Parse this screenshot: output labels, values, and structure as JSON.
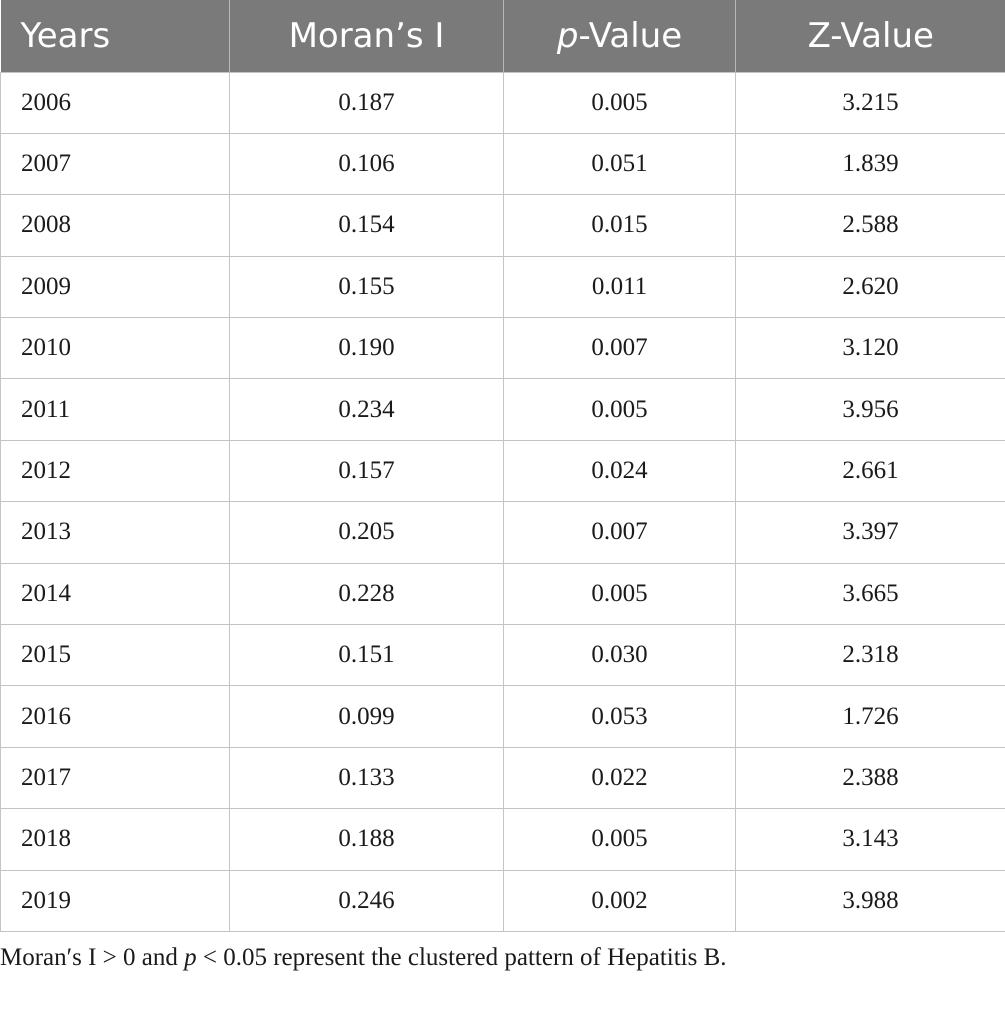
{
  "table": {
    "headers": {
      "years": "Years",
      "moran": "Moran’s I",
      "p_italic": "p",
      "p_rest": "-Value",
      "z": "Z-Value"
    },
    "rows": [
      {
        "year": "2006",
        "moran": "0.187",
        "p": "0.005",
        "z": "3.215"
      },
      {
        "year": "2007",
        "moran": "0.106",
        "p": "0.051",
        "z": "1.839"
      },
      {
        "year": "2008",
        "moran": "0.154",
        "p": "0.015",
        "z": "2.588"
      },
      {
        "year": "2009",
        "moran": "0.155",
        "p": "0.011",
        "z": "2.620"
      },
      {
        "year": "2010",
        "moran": "0.190",
        "p": "0.007",
        "z": "3.120"
      },
      {
        "year": "2011",
        "moran": "0.234",
        "p": "0.005",
        "z": "3.956"
      },
      {
        "year": "2012",
        "moran": "0.157",
        "p": "0.024",
        "z": "2.661"
      },
      {
        "year": "2013",
        "moran": "0.205",
        "p": "0.007",
        "z": "3.397"
      },
      {
        "year": "2014",
        "moran": "0.228",
        "p": "0.005",
        "z": "3.665"
      },
      {
        "year": "2015",
        "moran": "0.151",
        "p": "0.030",
        "z": "2.318"
      },
      {
        "year": "2016",
        "moran": "0.099",
        "p": "0.053",
        "z": "1.726"
      },
      {
        "year": "2017",
        "moran": "0.133",
        "p": "0.022",
        "z": "2.388"
      },
      {
        "year": "2018",
        "moran": "0.188",
        "p": "0.005",
        "z": "3.143"
      },
      {
        "year": "2019",
        "moran": "0.246",
        "p": "0.002",
        "z": "3.988"
      }
    ]
  },
  "note": {
    "part1": "Moran′s I > 0 and ",
    "p_italic": "p",
    "part2": " < 0.05 represent the clustered pattern of Hepatitis B."
  }
}
